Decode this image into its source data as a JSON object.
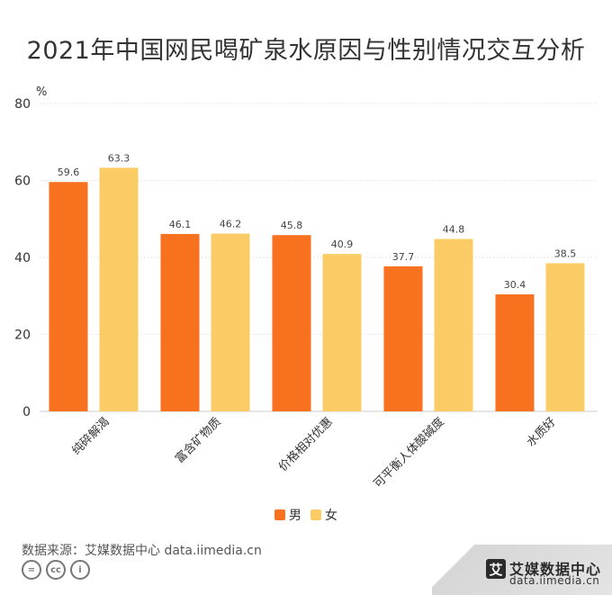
{
  "chart_data": {
    "type": "bar",
    "title": "2021年中国网民喝矿泉水原因与性别情况交互分析",
    "ylabel": "%",
    "ylim": [
      0,
      80
    ],
    "yticks": [
      0,
      20,
      40,
      60,
      80
    ],
    "categories": [
      "纯碎解渴",
      "富含矿物质",
      "价格相对优惠",
      "可平衡人体酸碱度",
      "水质好"
    ],
    "series": [
      {
        "name": "男",
        "color": "#F7711F",
        "values": [
          59.6,
          46.1,
          45.8,
          37.7,
          30.4
        ]
      },
      {
        "name": "女",
        "color": "#FBCC66",
        "values": [
          63.3,
          46.2,
          40.9,
          44.8,
          38.5
        ]
      }
    ],
    "legend_position": "bottom-center",
    "grid": true
  },
  "footer": {
    "source": "数据来源：艾媒数据中心 data.iimedia.cn",
    "cc_icons": [
      "equal-icon",
      "cc-icon",
      "person-icon"
    ]
  },
  "brand": {
    "logo_char": "艾",
    "name": "艾媒数据中心",
    "url": "data.iimedia.cn"
  }
}
